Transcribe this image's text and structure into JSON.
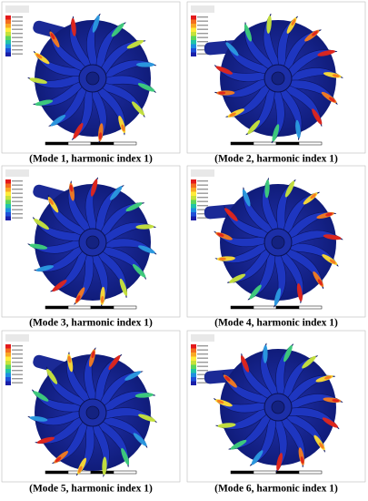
{
  "panels": [
    {
      "caption": "(Mode 1, harmonic index 1)"
    },
    {
      "caption": "(Mode 2, harmonic index 1)"
    },
    {
      "caption": "(Mode 3, harmonic index 1)"
    },
    {
      "caption": "(Mode 4, harmonic index 1)"
    },
    {
      "caption": "(Mode 5, harmonic index 1)"
    },
    {
      "caption": "(Mode 6, harmonic index 1)"
    }
  ]
}
